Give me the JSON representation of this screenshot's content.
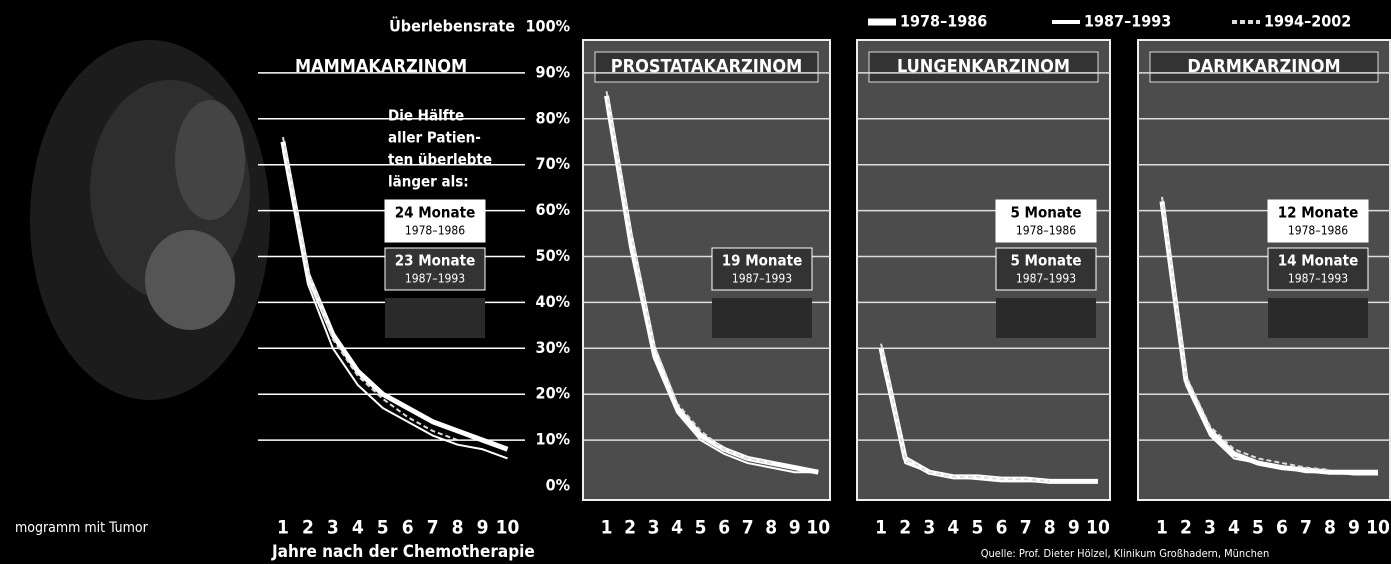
{
  "y_axis": {
    "title": "Überlebensrate",
    "ylim": [
      0,
      100
    ],
    "yticks": [
      {
        "value": 0,
        "label": "0%"
      },
      {
        "value": 10,
        "label": "10%"
      },
      {
        "value": 20,
        "label": "20%"
      },
      {
        "value": 30,
        "label": "30%"
      },
      {
        "value": 40,
        "label": "40%"
      },
      {
        "value": 50,
        "label": "50%"
      },
      {
        "value": 60,
        "label": "60%"
      },
      {
        "value": 70,
        "label": "70%"
      },
      {
        "value": 80,
        "label": "80%"
      },
      {
        "value": 90,
        "label": "90%"
      },
      {
        "value": 100,
        "label": "100%"
      }
    ]
  },
  "x_title": "Jahre nach der Chemotherapie",
  "source": "Quelle: Prof. Dieter Hölzel, Klinikum Großhadern, München",
  "image_caption": "mogramm mit Tumor",
  "chart_data": [
    {
      "type": "line",
      "title": "MAMMAKARZINOM",
      "x": [
        1,
        2,
        3,
        4,
        5,
        6,
        7,
        8,
        9,
        10
      ],
      "xlim": [
        0,
        10.5
      ],
      "xticks": [
        1,
        2,
        3,
        4,
        5,
        6,
        7,
        8,
        9,
        10
      ],
      "note": [
        "Die Hälfte",
        "aller Patien-",
        "ten überlebte",
        "länger als:"
      ],
      "annotations": [
        {
          "label": "24 Monate",
          "period": "1978–1986"
        },
        {
          "label": "23 Monate",
          "period": "1987–1993"
        }
      ],
      "series": [
        {
          "name": "1978–1986",
          "color": "#ffffff",
          "values": [
            75,
            46,
            33,
            25,
            20,
            17,
            14,
            12,
            10,
            8
          ]
        },
        {
          "name": "1987–1993",
          "color": "#ffffff",
          "values": [
            73,
            44,
            30,
            22,
            17,
            14,
            11,
            9,
            8,
            6
          ]
        },
        {
          "name": "1994–2002",
          "color": "#dddddd",
          "values": [
            76,
            47,
            32,
            24,
            19,
            15,
            12,
            10,
            null,
            null
          ]
        }
      ]
    },
    {
      "type": "line",
      "title": "PROSTATAKARZINOM",
      "x": [
        1,
        2,
        3,
        4,
        5,
        6,
        7,
        8,
        9,
        10
      ],
      "xlim": [
        0,
        10.5
      ],
      "xticks": [
        1,
        2,
        3,
        4,
        5,
        6,
        7,
        8,
        9,
        10
      ],
      "annotations": [
        {
          "label": "19 Monate",
          "period": "1987–1993"
        }
      ],
      "series": [
        {
          "color": "#ffffff",
          "values": [
            85,
            55,
            30,
            17,
            11,
            8,
            6,
            5,
            4,
            3
          ]
        },
        {
          "color": "#ffffff",
          "values": [
            83,
            52,
            28,
            16,
            10,
            7,
            5,
            4,
            3,
            3
          ]
        },
        {
          "color": "#dddddd",
          "values": [
            86,
            56,
            31,
            18,
            12,
            8,
            6,
            5,
            null,
            null
          ]
        }
      ]
    },
    {
      "type": "line",
      "title": "LUNGENKARZINOM",
      "x": [
        1,
        2,
        3,
        4,
        5,
        6,
        7,
        8,
        9,
        10
      ],
      "xlim": [
        0,
        10.5
      ],
      "xticks": [
        1,
        2,
        3,
        4,
        5,
        6,
        7,
        8,
        9,
        10
      ],
      "annotations": [
        {
          "label": "5 Monate",
          "period": "1978–1986"
        },
        {
          "label": "5 Monate",
          "period": "1987–1993"
        }
      ],
      "series": [
        {
          "color": "#ffffff",
          "values": [
            30,
            6,
            3,
            2,
            2,
            1.5,
            1.5,
            1,
            1,
            1
          ]
        },
        {
          "color": "#ffffff",
          "values": [
            28,
            5,
            3,
            2,
            1.5,
            1,
            1,
            1,
            1,
            1
          ]
        },
        {
          "color": "#dddddd",
          "values": [
            31,
            6,
            3,
            2,
            2,
            1.5,
            1.5,
            1,
            null,
            null
          ]
        }
      ]
    },
    {
      "type": "line",
      "title": "DARMKARZINOM",
      "x": [
        1,
        2,
        3,
        4,
        5,
        6,
        7,
        8,
        9,
        10
      ],
      "xlim": [
        0,
        10.5
      ],
      "xticks": [
        1,
        2,
        3,
        4,
        5,
        6,
        7,
        8,
        9,
        10
      ],
      "annotations": [
        {
          "label": "12 Monate",
          "period": "1978–1986"
        },
        {
          "label": "14 Monate",
          "period": "1987–1993"
        }
      ],
      "series": [
        {
          "color": "#ffffff",
          "values": [
            62,
            23,
            12,
            7,
            5,
            4,
            3.5,
            3,
            3,
            3
          ]
        },
        {
          "color": "#ffffff",
          "values": [
            60,
            22,
            11,
            6,
            5,
            4,
            3,
            3,
            2.5,
            2.5
          ]
        },
        {
          "color": "#dddddd",
          "values": [
            63,
            24,
            13,
            8,
            6,
            5,
            4,
            3.5,
            null,
            null
          ]
        }
      ]
    }
  ]
}
